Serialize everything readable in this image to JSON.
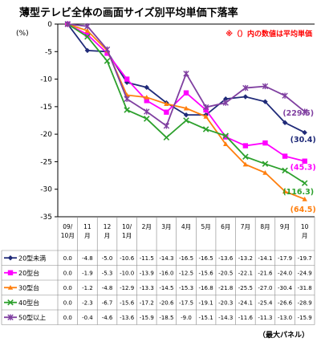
{
  "chart_data": {
    "type": "line",
    "title": "薄型テレビ全体の画面サイズ別平均単価下落率",
    "note": "※（）内の数値は平均単価",
    "unit_label": "(%)",
    "footer": "（最大パネル）",
    "ylim": [
      -35,
      0
    ],
    "yticks": [
      0,
      -5,
      -10,
      -15,
      -20,
      -25,
      -30,
      -35
    ],
    "grid": false,
    "legend_placement": "bottom-table",
    "categories": [
      [
        "09/",
        "10月"
      ],
      [
        "11",
        "月"
      ],
      [
        "12",
        "月"
      ],
      [
        "10/",
        "1月"
      ],
      [
        "2月"
      ],
      [
        "3月"
      ],
      [
        "4月"
      ],
      [
        "5月"
      ],
      [
        "6月"
      ],
      [
        "7月"
      ],
      [
        "8月"
      ],
      [
        "9月"
      ],
      [
        "10",
        "月"
      ]
    ],
    "series": [
      {
        "name": "20型未満",
        "color": "#1f2a78",
        "marker": "diamond",
        "values": [
          0.0,
          -4.8,
          -5.0,
          -10.6,
          -11.5,
          -14.3,
          -16.5,
          -16.5,
          -13.6,
          -13.2,
          -14.1,
          -17.9,
          -19.7
        ],
        "end_label": "(30.4)"
      },
      {
        "name": "20型台",
        "color": "#ff00ff",
        "marker": "square",
        "values": [
          0.0,
          -1.9,
          -5.3,
          -10.0,
          -13.9,
          -16.0,
          -12.5,
          -15.6,
          -20.5,
          -22.1,
          -21.6,
          -24.0,
          -24.9
        ],
        "end_label": "(45.3)"
      },
      {
        "name": "30型台",
        "color": "#ff7f0e",
        "marker": "triangle",
        "values": [
          0.0,
          -1.2,
          -4.8,
          -12.9,
          -13.3,
          -14.5,
          -15.3,
          -16.8,
          -21.8,
          -25.5,
          -27.0,
          -30.4,
          -31.8
        ],
        "end_label": "(64.5)"
      },
      {
        "name": "40型台",
        "color": "#2ca02c",
        "marker": "x",
        "values": [
          0.0,
          -2.3,
          -6.7,
          -15.6,
          -17.2,
          -20.6,
          -17.5,
          -19.1,
          -20.3,
          -24.1,
          -25.4,
          -26.6,
          -28.9
        ],
        "end_label": "(116.3)"
      },
      {
        "name": "50型以上",
        "color": "#7f3fa0",
        "marker": "star",
        "values": [
          0.0,
          -0.4,
          -4.6,
          -13.6,
          -15.9,
          -18.5,
          -9.0,
          -15.1,
          -14.3,
          -11.6,
          -11.3,
          -13.0,
          -15.9
        ],
        "end_label": "(229.5)"
      }
    ]
  }
}
